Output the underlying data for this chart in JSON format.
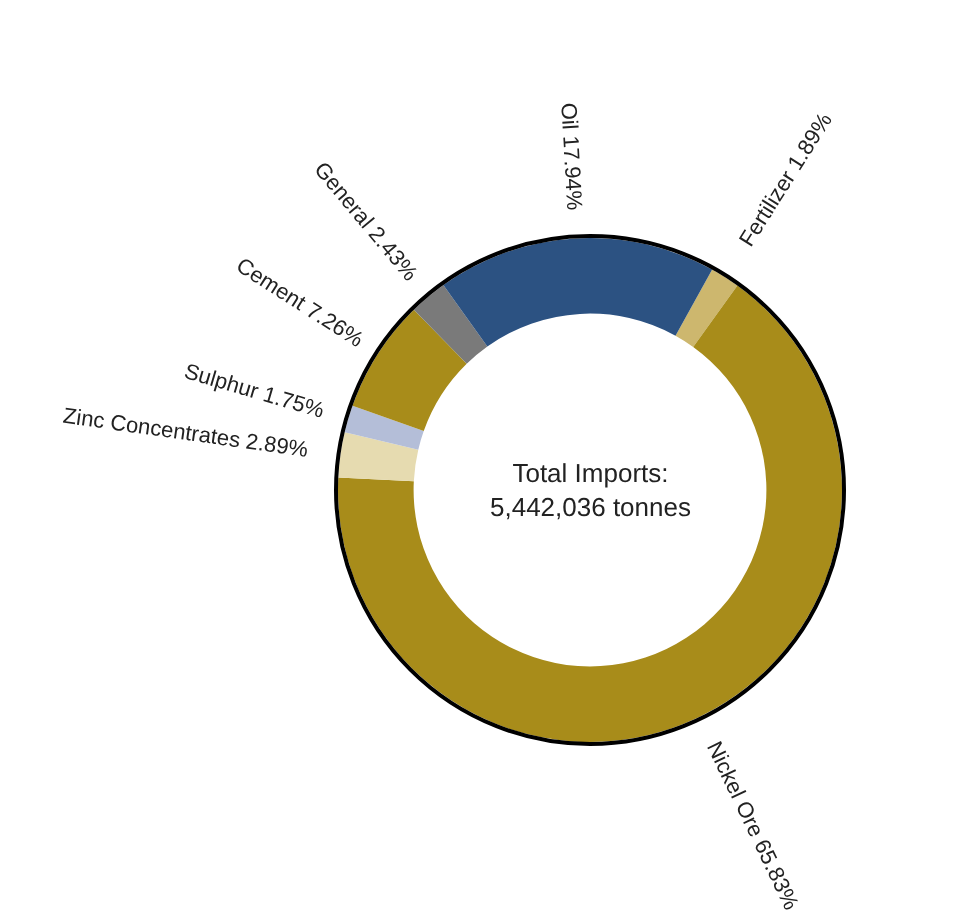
{
  "chart_data": {
    "type": "donut",
    "categories": [
      "Fertilizer",
      "Nickel Ore",
      "Zinc Concentrates",
      "Sulphur",
      "Cement",
      "General",
      "Oil"
    ],
    "values": [
      1.89,
      65.83,
      2.89,
      1.75,
      7.26,
      2.43,
      17.94
    ],
    "value_labels": [
      "1.89%",
      "65.83%",
      "2.89%",
      "1.75%",
      "7.26%",
      "2.43%",
      "17.94%"
    ],
    "colors": [
      "#cdb76e",
      "#a88c1a",
      "#e6dbb0",
      "#b4bed8",
      "#a88c1a",
      "#7a7a7a",
      "#2c5282"
    ],
    "annotations": [
      "Total Imports:\n5,442,036 tonnes"
    ],
    "legend": false
  }
}
